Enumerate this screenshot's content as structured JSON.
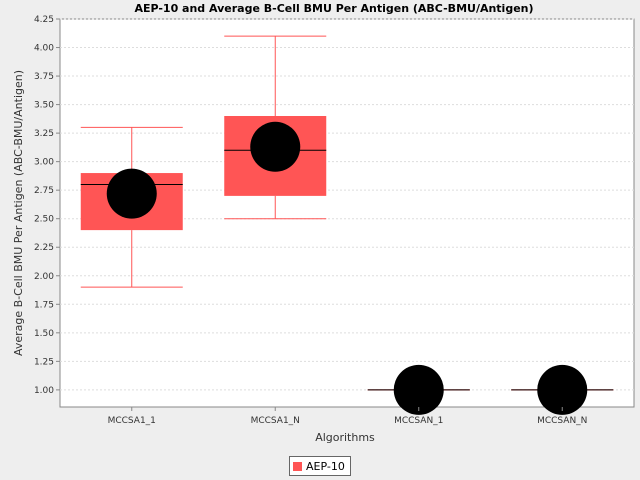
{
  "chart_data": {
    "type": "box",
    "title": "AEP-10 and Average B-Cell BMU Per Antigen (ABC-BMU/Antigen)",
    "xlabel": "Algorithms",
    "ylabel": "Average B-Cell BMU Per Antigen (ABC-BMU/Antigen)",
    "ylim": [
      0.85,
      4.25
    ],
    "yticks": [
      "1.00",
      "1.25",
      "1.50",
      "1.75",
      "2.00",
      "2.25",
      "2.50",
      "2.75",
      "3.00",
      "3.25",
      "3.50",
      "3.75",
      "4.00",
      "4.25"
    ],
    "grid": true,
    "legend_position": "bottom",
    "categories": [
      "MCCSA1_1",
      "MCCSA1_N",
      "MCCSAN_1",
      "MCCSAN_N"
    ],
    "series": [
      {
        "name": "AEP-10",
        "color": "#ff5555",
        "boxes": [
          {
            "min": 1.9,
            "q1": 2.4,
            "median": 2.8,
            "q3": 2.9,
            "max": 3.3,
            "mean": 2.72
          },
          {
            "min": 2.5,
            "q1": 2.7,
            "median": 3.1,
            "q3": 3.4,
            "max": 4.1,
            "mean": 3.13
          },
          {
            "min": 1.0,
            "q1": 1.0,
            "median": 1.0,
            "q3": 1.0,
            "max": 1.0,
            "mean": 1.0
          },
          {
            "min": 1.0,
            "q1": 1.0,
            "median": 1.0,
            "q3": 1.0,
            "max": 1.0,
            "mean": 1.0
          }
        ]
      }
    ],
    "mean_marker_color": "#000000"
  }
}
